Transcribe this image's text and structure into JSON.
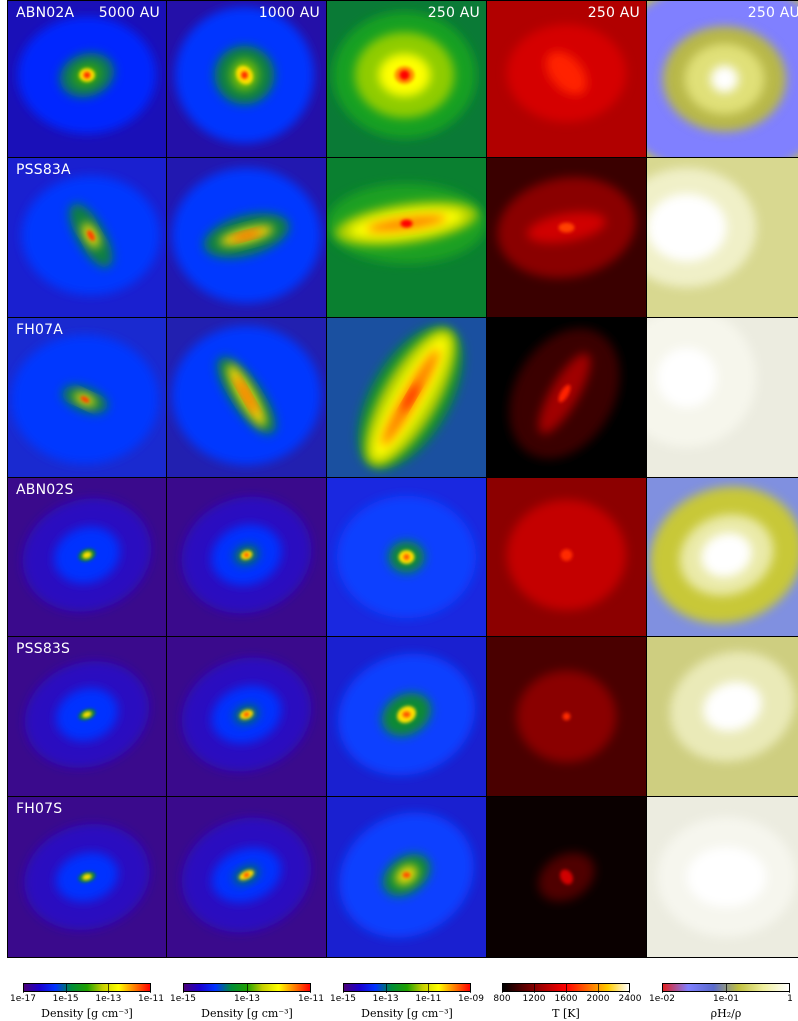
{
  "rows": [
    {
      "label": "ABN02A"
    },
    {
      "label": "PSS83A"
    },
    {
      "label": "FH07A"
    },
    {
      "label": "ABN02S"
    },
    {
      "label": "PSS83S"
    },
    {
      "label": "FH07S"
    }
  ],
  "columns": [
    {
      "scale": "5000 AU",
      "field": "Density"
    },
    {
      "scale": "1000 AU",
      "field": "Density"
    },
    {
      "scale": "250 AU",
      "field": "Density"
    },
    {
      "scale": "250 AU",
      "field": "Temperature"
    },
    {
      "scale": "250 AU",
      "field": "H2 fraction"
    }
  ],
  "colorbars": [
    {
      "ticks": [
        "1e-17",
        "1e-15",
        "1e-13",
        "1e-11"
      ],
      "label": "Density [g cm⁻³]",
      "colormap": "density"
    },
    {
      "ticks": [
        "1e-15",
        "1e-13",
        "1e-11"
      ],
      "label": "Density [g cm⁻³]",
      "colormap": "density"
    },
    {
      "ticks": [
        "1e-15",
        "1e-13",
        "1e-11",
        "1e-09"
      ],
      "label": "Density [g cm⁻³]",
      "colormap": "density"
    },
    {
      "ticks": [
        "800",
        "1200",
        "1600",
        "2000",
        "2400"
      ],
      "label": "T [K]",
      "colormap": "hot"
    },
    {
      "ticks": [
        "1e-02",
        "1e-01",
        "1"
      ],
      "label": "ρH₂/ρ",
      "colormap": "h2"
    }
  ],
  "colors": {
    "density_stops": [
      "#4a007a",
      "#1a00d0",
      "#0033ff",
      "#008c3a",
      "#1fa000",
      "#c8d000",
      "#ffff00",
      "#ff8000",
      "#ff0000"
    ],
    "hot_stops": [
      "#000000",
      "#5a0000",
      "#b00000",
      "#ff0000",
      "#ff6600",
      "#ffcc00",
      "#ffffff"
    ],
    "h2_stops": [
      "#e02020",
      "#8080ff",
      "#5a6acc",
      "#c0c040",
      "#f0f0a0",
      "#ffffff"
    ],
    "border": "#000000",
    "label_text": "#ffffff"
  }
}
